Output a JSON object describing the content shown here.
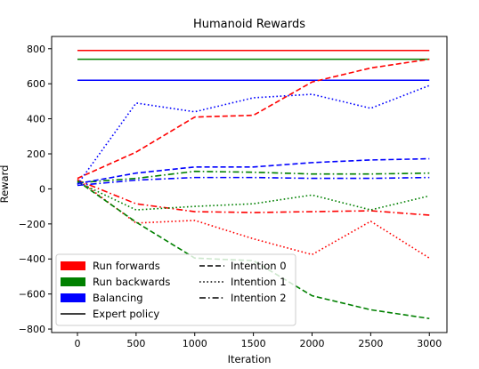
{
  "chart_data": {
    "type": "line",
    "title": "Humanoid Rewards",
    "xlabel": "Iteration",
    "ylabel": "Reward",
    "xlim": [
      -220,
      3150
    ],
    "ylim": [
      -820,
      870
    ],
    "xticks": [
      0,
      500,
      1000,
      1500,
      2000,
      2500,
      3000
    ],
    "yticks": [
      -800,
      -600,
      -400,
      -200,
      0,
      200,
      400,
      600,
      800
    ],
    "grid": false,
    "legend_placement": "lower-left",
    "colors": {
      "run_forwards": "#ff0000",
      "run_backwards": "#008000",
      "balancing": "#0000ff",
      "expert": "#000000"
    },
    "legend": {
      "colors": [
        {
          "label": "Run forwards",
          "color": "#ff0000"
        },
        {
          "label": "Run backwards",
          "color": "#008000"
        },
        {
          "label": "Balancing",
          "color": "#0000ff"
        }
      ],
      "styles": [
        {
          "label": "Expert policy",
          "dash": "solid"
        },
        {
          "label": "Intention 0",
          "dash": "dashed"
        },
        {
          "label": "Intention 1",
          "dash": "dotted"
        },
        {
          "label": "Intention 2",
          "dash": "dashdot"
        }
      ]
    },
    "x": [
      0,
      500,
      1000,
      1500,
      2000,
      2500,
      3000
    ],
    "series": [
      {
        "task": "Run forwards",
        "style": "solid",
        "color": "#ff0000",
        "values": [
          790,
          790,
          790,
          790,
          790,
          790,
          790
        ]
      },
      {
        "task": "Run backwards",
        "style": "solid",
        "color": "#008000",
        "values": [
          740,
          740,
          740,
          740,
          740,
          740,
          740
        ]
      },
      {
        "task": "Balancing",
        "style": "solid",
        "color": "#0000ff",
        "values": [
          620,
          620,
          620,
          620,
          620,
          620,
          620
        ]
      },
      {
        "task": "Run forwards",
        "style": "dashed",
        "color": "#ff0000",
        "values": [
          60,
          210,
          410,
          420,
          610,
          690,
          740
        ]
      },
      {
        "task": "Run forwards",
        "style": "dotted",
        "color": "#ff0000",
        "values": [
          55,
          -195,
          -180,
          -285,
          -375,
          -185,
          -395
        ]
      },
      {
        "task": "Run forwards",
        "style": "dashdot",
        "color": "#ff0000",
        "values": [
          50,
          -85,
          -130,
          -135,
          -130,
          -125,
          -150
        ]
      },
      {
        "task": "Run backwards",
        "style": "dashed",
        "color": "#008000",
        "values": [
          45,
          -190,
          -395,
          -410,
          -610,
          -690,
          -740
        ]
      },
      {
        "task": "Run backwards",
        "style": "dotted",
        "color": "#008000",
        "values": [
          40,
          -120,
          -100,
          -85,
          -35,
          -120,
          -40
        ]
      },
      {
        "task": "Run backwards",
        "style": "dashdot",
        "color": "#008000",
        "values": [
          35,
          60,
          100,
          95,
          85,
          85,
          90
        ]
      },
      {
        "task": "Balancing",
        "style": "dashed",
        "color": "#0000ff",
        "values": [
          30,
          90,
          125,
          125,
          150,
          165,
          172
        ]
      },
      {
        "task": "Balancing",
        "style": "dotted",
        "color": "#0000ff",
        "values": [
          25,
          490,
          440,
          520,
          540,
          460,
          590
        ]
      },
      {
        "task": "Balancing",
        "style": "dashdot",
        "color": "#0000ff",
        "values": [
          20,
          50,
          65,
          65,
          60,
          60,
          65
        ]
      }
    ]
  }
}
